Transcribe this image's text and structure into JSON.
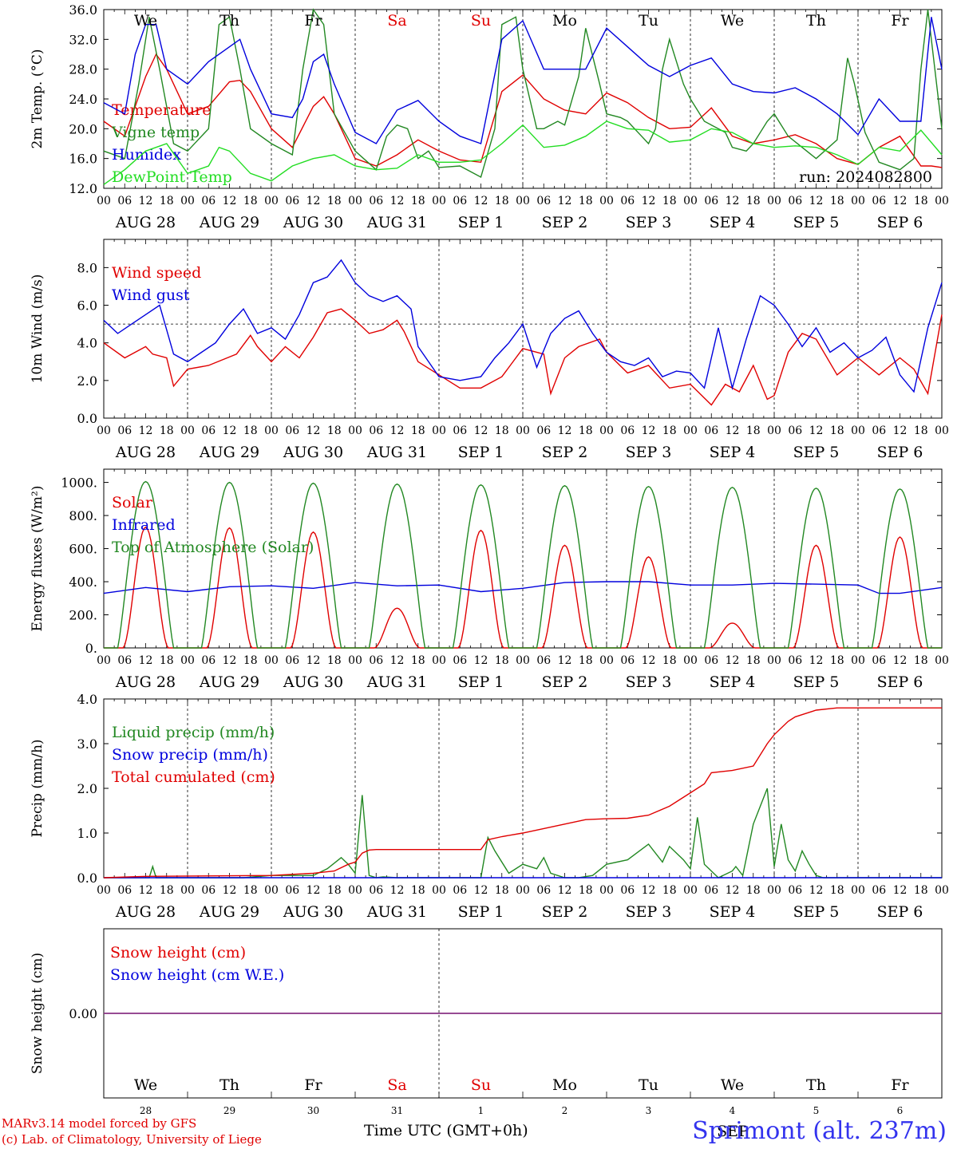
{
  "run": "run: 2024082800",
  "weekdays": [
    {
      "label": "We",
      "color": "#000000"
    },
    {
      "label": "Th",
      "color": "#000000"
    },
    {
      "label": "Fr",
      "color": "#000000"
    },
    {
      "label": "Sa",
      "color": "#e00000"
    },
    {
      "label": "Su",
      "color": "#e00000"
    },
    {
      "label": "Mo",
      "color": "#000000"
    },
    {
      "label": "Tu",
      "color": "#000000"
    },
    {
      "label": "We",
      "color": "#000000"
    },
    {
      "label": "Th",
      "color": "#000000"
    },
    {
      "label": "Fr",
      "color": "#000000"
    }
  ],
  "dates": [
    "AUG 28",
    "AUG 29",
    "AUG 30",
    "AUG 31",
    "SEP  1",
    "SEP  2",
    "SEP  3",
    "SEP  4",
    "SEP  5",
    "SEP  6"
  ],
  "hour_ticks": [
    "00",
    "06",
    "12",
    "18"
  ],
  "bottom_day_numbers": [
    "28",
    "29",
    "30",
    "31",
    "1",
    "2",
    "3",
    "4",
    "5",
    "6"
  ],
  "bottom_month": "SEP",
  "xaxis_title": "Time UTC (GMT+0h)",
  "credit_line1": "MARv3.14 model forced by GFS",
  "credit_line2": "(c) Lab. of Climatology, University of Liege",
  "station": "Sprimont (alt. 237m)",
  "chart_data": [
    {
      "type": "line",
      "ylabel": "2m Temp. (°C)",
      "ylim": [
        12,
        36
      ],
      "yticks": [
        12.0,
        16.0,
        20.0,
        24.0,
        28.0,
        32.0,
        36.0
      ],
      "ytick_labels": [
        "12.0",
        "16.0",
        "20.0",
        "24.0",
        "28.0",
        "32.0",
        "36.0"
      ],
      "x_hours_range": [
        0,
        240
      ],
      "series": [
        {
          "name": "Temperature",
          "color": "#e00000",
          "x": [
            0,
            6,
            12,
            15,
            18,
            24,
            30,
            36,
            39,
            42,
            48,
            54,
            60,
            63,
            66,
            72,
            78,
            84,
            90,
            96,
            102,
            108,
            114,
            120,
            126,
            132,
            138,
            144,
            150,
            156,
            162,
            168,
            174,
            180,
            186,
            192,
            198,
            204,
            210,
            216,
            222,
            228,
            234,
            237,
            240
          ],
          "y": [
            21,
            19,
            27,
            30,
            28,
            22,
            23,
            26.3,
            26.5,
            25,
            20,
            17.5,
            23,
            24.3,
            22,
            16,
            15,
            16.5,
            18.5,
            17,
            15.8,
            15.5,
            25,
            27.2,
            24,
            22.5,
            22,
            24.8,
            23.5,
            21.5,
            20,
            20.2,
            22.8,
            19,
            18,
            18.5,
            19.2,
            18,
            16,
            15.2,
            17.5,
            19,
            15,
            15,
            14.8
          ]
        },
        {
          "name": "Vigne temp",
          "color": "#228822",
          "x": [
            0,
            6,
            10,
            13,
            16,
            20,
            24,
            30,
            33,
            36,
            39,
            42,
            48,
            54,
            57,
            60,
            63,
            66,
            72,
            78,
            81,
            84,
            87,
            90,
            93,
            96,
            102,
            108,
            112,
            114,
            118,
            120,
            124,
            126,
            130,
            132,
            136,
            138,
            142,
            144,
            148,
            150,
            154,
            156,
            158,
            160,
            162,
            166,
            168,
            172,
            174,
            178,
            180,
            184,
            186,
            190,
            192,
            196,
            200,
            204,
            210,
            213,
            215,
            218,
            222,
            228,
            232,
            234,
            236,
            240
          ],
          "y": [
            17,
            16,
            26,
            35,
            28,
            18,
            17,
            20,
            34,
            35,
            28,
            20,
            18,
            16.5,
            28,
            36,
            34,
            22,
            17,
            14.5,
            19,
            20.5,
            20,
            16,
            17,
            14.8,
            15,
            13.5,
            20,
            34,
            35,
            28,
            20,
            20,
            21,
            20.5,
            27,
            33.5,
            26,
            22,
            21.5,
            21,
            19,
            18,
            20,
            28,
            32,
            26,
            24,
            21,
            20.5,
            19.5,
            17.5,
            17,
            18,
            21,
            22,
            19,
            17.5,
            16,
            18.5,
            29.5,
            26,
            19.5,
            15.5,
            14.5,
            16,
            28,
            36,
            20
          ]
        },
        {
          "name": "Humidex",
          "color": "#0000dd",
          "x": [
            0,
            6,
            9,
            12,
            15,
            18,
            24,
            30,
            36,
            39,
            42,
            48,
            54,
            57,
            60,
            63,
            66,
            72,
            78,
            84,
            90,
            96,
            102,
            108,
            114,
            120,
            126,
            132,
            138,
            144,
            150,
            156,
            162,
            168,
            174,
            180,
            186,
            192,
            198,
            204,
            210,
            216,
            222,
            228,
            234,
            237,
            240
          ],
          "y": [
            23.5,
            22,
            30,
            34,
            34,
            28,
            26,
            29,
            31,
            32,
            28,
            22,
            21.5,
            24,
            29,
            30,
            26,
            19.5,
            18,
            22.5,
            23.8,
            21,
            19,
            18,
            32,
            34.5,
            28,
            28,
            28,
            33.5,
            31,
            28.5,
            27,
            28.5,
            29.5,
            26,
            25,
            24.8,
            25.5,
            24,
            22,
            19.2,
            24,
            21,
            21,
            35,
            28
          ]
        },
        {
          "name": "DewPoint Temp",
          "color": "#22dd22",
          "x": [
            0,
            6,
            12,
            18,
            24,
            30,
            33,
            36,
            42,
            48,
            54,
            60,
            66,
            72,
            78,
            84,
            90,
            96,
            102,
            108,
            114,
            120,
            126,
            132,
            138,
            144,
            150,
            156,
            162,
            168,
            174,
            180,
            186,
            192,
            198,
            204,
            210,
            216,
            222,
            228,
            234,
            240
          ],
          "y": [
            12.5,
            14.5,
            17,
            18,
            14,
            15,
            17.5,
            17,
            14,
            13,
            15,
            16,
            16.5,
            15,
            14.5,
            14.7,
            16.5,
            15.5,
            15.5,
            15.8,
            18,
            20.5,
            17.5,
            17.8,
            19,
            21,
            20,
            19.8,
            18.2,
            18.5,
            20,
            19.5,
            18,
            17.5,
            17.7,
            17.5,
            16.5,
            15.2,
            17.5,
            17,
            19.8,
            16.5
          ]
        }
      ]
    },
    {
      "type": "line",
      "ylabel": "10m Wind (m/s)",
      "ylim": [
        0,
        9.5
      ],
      "yticks": [
        0,
        2,
        4,
        6,
        8
      ],
      "ytick_labels": [
        "0.0",
        "2.0",
        "4.0",
        "6.0",
        "8.0"
      ],
      "reference_line": 5.0,
      "series": [
        {
          "name": "Wind speed",
          "color": "#e00000",
          "x": [
            0,
            6,
            12,
            14,
            18,
            20,
            24,
            30,
            34,
            38,
            42,
            44,
            48,
            52,
            56,
            60,
            64,
            68,
            72,
            76,
            80,
            84,
            86,
            90,
            96,
            102,
            108,
            114,
            120,
            126,
            128,
            132,
            136,
            142,
            144,
            150,
            156,
            162,
            168,
            174,
            178,
            182,
            186,
            190,
            192,
            196,
            200,
            204,
            210,
            216,
            222,
            228,
            232,
            236,
            240
          ],
          "y": [
            4,
            3.2,
            3.8,
            3.4,
            3.2,
            1.7,
            2.6,
            2.8,
            3.1,
            3.4,
            4.4,
            3.8,
            3.0,
            3.8,
            3.2,
            4.3,
            5.6,
            5.8,
            5.2,
            4.5,
            4.7,
            5.2,
            4.6,
            3.0,
            2.3,
            1.6,
            1.6,
            2.2,
            3.7,
            3.4,
            1.3,
            3.2,
            3.8,
            4.2,
            3.5,
            2.4,
            2.8,
            1.6,
            1.8,
            0.7,
            1.8,
            1.4,
            2.8,
            1.0,
            1.2,
            3.5,
            4.5,
            4.2,
            2.3,
            3.2,
            2.3,
            3.2,
            2.6,
            1.3,
            5.5
          ]
        },
        {
          "name": "Wind gust",
          "color": "#0000dd",
          "x": [
            0,
            4,
            8,
            12,
            16,
            20,
            24,
            28,
            32,
            36,
            40,
            44,
            48,
            52,
            56,
            60,
            64,
            68,
            72,
            76,
            80,
            84,
            88,
            90,
            96,
            102,
            108,
            112,
            116,
            120,
            124,
            128,
            132,
            136,
            140,
            144,
            148,
            152,
            156,
            160,
            164,
            168,
            172,
            176,
            180,
            184,
            188,
            192,
            196,
            200,
            204,
            208,
            212,
            216,
            220,
            224,
            228,
            232,
            236,
            240
          ],
          "y": [
            5.2,
            4.5,
            5.0,
            5.5,
            6.0,
            3.4,
            3.0,
            3.5,
            4.0,
            5.0,
            5.8,
            4.5,
            4.8,
            4.2,
            5.5,
            7.2,
            7.5,
            8.4,
            7.2,
            6.5,
            6.2,
            6.5,
            5.8,
            3.8,
            2.2,
            2.0,
            2.2,
            3.2,
            4.0,
            5.0,
            2.7,
            4.5,
            5.3,
            5.7,
            4.5,
            3.5,
            3.0,
            2.8,
            3.2,
            2.2,
            2.5,
            2.4,
            1.6,
            4.8,
            1.6,
            4.2,
            6.5,
            6.0,
            5.0,
            3.8,
            4.8,
            3.5,
            4.0,
            3.2,
            3.6,
            4.3,
            2.3,
            1.4,
            4.8,
            7.2
          ]
        }
      ]
    },
    {
      "type": "line",
      "ylabel": "Energy fluxes (W/m²)",
      "ylim": [
        0,
        1080
      ],
      "yticks": [
        0,
        200,
        400,
        600,
        800,
        1000
      ],
      "ytick_labels": [
        "0.",
        "200.",
        "400.",
        "600.",
        "800.",
        "1000."
      ],
      "series": [
        {
          "name": "Solar",
          "color": "#e00000",
          "days_peak": [
            730,
            725,
            700,
            240,
            710,
            620,
            550,
            150,
            620,
            670
          ]
        },
        {
          "name": "Infrared",
          "color": "#0000dd",
          "x": [
            0,
            12,
            24,
            36,
            48,
            60,
            72,
            84,
            96,
            108,
            120,
            132,
            144,
            156,
            168,
            180,
            192,
            204,
            216,
            222,
            228,
            240
          ],
          "y": [
            330,
            365,
            340,
            370,
            375,
            360,
            395,
            375,
            380,
            340,
            360,
            395,
            400,
            400,
            380,
            380,
            390,
            385,
            380,
            330,
            330,
            365
          ]
        },
        {
          "name": "Top of Atmosphere (Solar)",
          "color": "#228822",
          "days_peak": [
            1005,
            1000,
            995,
            990,
            985,
            980,
            975,
            970,
            965,
            960
          ]
        }
      ]
    },
    {
      "type": "line",
      "ylabel": "Precip (mm/h)",
      "ylim": [
        0,
        4
      ],
      "yticks": [
        0,
        1,
        2,
        3,
        4
      ],
      "ytick_labels": [
        "0.0",
        "1.0",
        "2.0",
        "3.0",
        "4.0"
      ],
      "series": [
        {
          "name": "Liquid precip (mm/h)",
          "color": "#228822",
          "x": [
            0,
            13,
            14,
            15,
            40,
            48,
            60,
            64,
            68,
            70,
            72,
            74,
            76,
            78,
            80,
            84,
            96,
            108,
            110,
            112,
            116,
            120,
            124,
            126,
            128,
            132,
            136,
            140,
            144,
            150,
            156,
            160,
            162,
            166,
            168,
            170,
            172,
            176,
            180,
            181,
            183,
            186,
            190,
            192,
            194,
            196,
            198,
            200,
            202,
            204,
            206,
            208,
            210,
            212,
            216,
            240
          ],
          "y": [
            0,
            0,
            0.25,
            0,
            0,
            0.05,
            0.05,
            0.2,
            0.45,
            0.3,
            0.1,
            1.85,
            0.05,
            0,
            0.02,
            0,
            0,
            0,
            0.9,
            0.6,
            0.1,
            0.3,
            0.2,
            0.45,
            0.1,
            0,
            0,
            0.05,
            0.3,
            0.4,
            0.75,
            0.35,
            0.7,
            0.4,
            0.2,
            1.35,
            0.3,
            0,
            0.15,
            0.25,
            0.05,
            1.2,
            2.0,
            0.25,
            1.2,
            0.4,
            0.15,
            0.6,
            0.3,
            0.05,
            0,
            0,
            0,
            0,
            0,
            0
          ]
        },
        {
          "name": "Snow precip (mm/h)",
          "color": "#0000dd",
          "x": [
            0,
            240
          ],
          "y": [
            0,
            0
          ]
        },
        {
          "name": "Total cumulated (cm)",
          "color": "#e00000",
          "x": [
            0,
            12,
            48,
            60,
            66,
            70,
            72,
            74,
            76,
            78,
            84,
            96,
            108,
            110,
            114,
            120,
            126,
            132,
            138,
            144,
            150,
            156,
            162,
            168,
            172,
            174,
            180,
            186,
            190,
            192,
            196,
            198,
            204,
            210,
            216,
            240
          ],
          "y": [
            0,
            0.03,
            0.05,
            0.1,
            0.15,
            0.3,
            0.35,
            0.55,
            0.62,
            0.63,
            0.63,
            0.63,
            0.63,
            0.85,
            0.92,
            1.0,
            1.1,
            1.2,
            1.3,
            1.32,
            1.33,
            1.4,
            1.6,
            1.9,
            2.1,
            2.35,
            2.4,
            2.5,
            3.0,
            3.2,
            3.5,
            3.6,
            3.75,
            3.8,
            3.8,
            3.8
          ]
        }
      ]
    },
    {
      "type": "line",
      "ylabel": "Snow height (cm)",
      "yticks": [
        0
      ],
      "ytick_labels": [
        "0.00"
      ],
      "series": [
        {
          "name": "Snow height (cm)",
          "color": "#e00000",
          "x": [
            0,
            240
          ],
          "y": [
            0,
            0
          ]
        },
        {
          "name": "Snow height (cm W.E.)",
          "color": "#0000dd",
          "x": [
            0,
            240
          ],
          "y": [
            0,
            0
          ]
        }
      ]
    }
  ]
}
